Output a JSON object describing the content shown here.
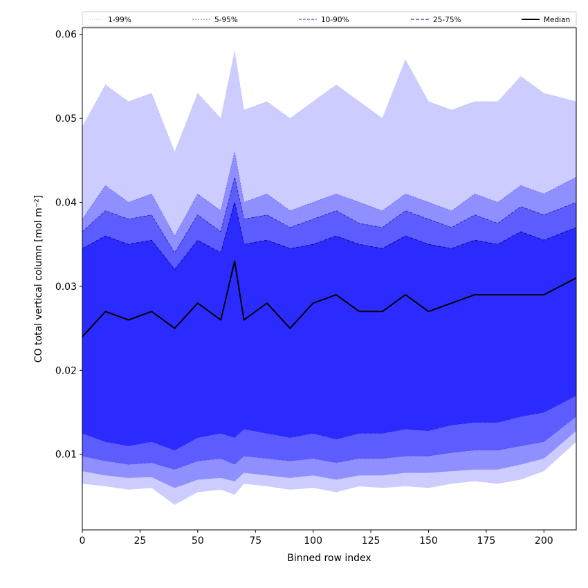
{
  "chart_data": {
    "type": "area",
    "xlabel": "Binned row index",
    "ylabel": "CO total vertical column [mol m⁻²]",
    "xlim": [
      0,
      214
    ],
    "ylim": [
      0.001,
      0.0608
    ],
    "x_ticks": [
      0,
      25,
      50,
      75,
      100,
      125,
      150,
      175,
      200
    ],
    "y_ticks": [
      0.01,
      0.02,
      0.03,
      0.04,
      0.05,
      0.06
    ],
    "x_tick_labels": [
      "0",
      "25",
      "50",
      "75",
      "100",
      "125",
      "150",
      "175",
      "200"
    ],
    "y_tick_labels": [
      "0.01",
      "0.02",
      "0.03",
      "0.04",
      "0.05",
      "0.06"
    ],
    "grid": false,
    "legend_placement": "top, full width",
    "x": [
      0,
      10,
      20,
      30,
      40,
      50,
      60,
      66,
      70,
      80,
      90,
      100,
      110,
      120,
      130,
      140,
      150,
      160,
      170,
      180,
      190,
      200,
      214
    ],
    "bands": [
      {
        "name": "1-99%",
        "color": "#ccccff",
        "lower": [
          0.0065,
          0.0062,
          0.0058,
          0.006,
          0.004,
          0.0055,
          0.0058,
          0.0052,
          0.0065,
          0.0062,
          0.0058,
          0.006,
          0.0055,
          0.0062,
          0.006,
          0.0062,
          0.006,
          0.0065,
          0.0068,
          0.0065,
          0.007,
          0.008,
          0.0115
        ],
        "upper": [
          0.049,
          0.054,
          0.052,
          0.053,
          0.046,
          0.053,
          0.05,
          0.058,
          0.051,
          0.052,
          0.05,
          0.052,
          0.054,
          0.052,
          0.05,
          0.057,
          0.052,
          0.051,
          0.052,
          0.052,
          0.055,
          0.053,
          0.052
        ]
      },
      {
        "name": "5-95%",
        "color": "#8f8fff",
        "lower": [
          0.008,
          0.0075,
          0.0072,
          0.0073,
          0.006,
          0.007,
          0.0072,
          0.0068,
          0.0078,
          0.0075,
          0.0072,
          0.0075,
          0.007,
          0.0075,
          0.0075,
          0.0078,
          0.0078,
          0.008,
          0.0082,
          0.0082,
          0.0088,
          0.0095,
          0.0128
        ],
        "upper": [
          0.038,
          0.042,
          0.04,
          0.041,
          0.036,
          0.041,
          0.039,
          0.046,
          0.04,
          0.041,
          0.039,
          0.04,
          0.041,
          0.04,
          0.039,
          0.041,
          0.04,
          0.039,
          0.041,
          0.04,
          0.042,
          0.041,
          0.043
        ]
      },
      {
        "name": "10-90%",
        "color": "#5c5cff",
        "lower": [
          0.0098,
          0.0092,
          0.0088,
          0.009,
          0.0082,
          0.0092,
          0.0095,
          0.0088,
          0.0098,
          0.0095,
          0.0092,
          0.0095,
          0.009,
          0.0095,
          0.0095,
          0.0098,
          0.0098,
          0.0102,
          0.0105,
          0.0105,
          0.011,
          0.0115,
          0.0145
        ],
        "upper": [
          0.0365,
          0.039,
          0.038,
          0.0385,
          0.034,
          0.0385,
          0.0365,
          0.043,
          0.038,
          0.0385,
          0.037,
          0.038,
          0.039,
          0.0375,
          0.037,
          0.039,
          0.038,
          0.037,
          0.0385,
          0.0375,
          0.0395,
          0.0385,
          0.04
        ]
      },
      {
        "name": "25-75%",
        "color": "#2b2bff",
        "lower": [
          0.0125,
          0.0115,
          0.011,
          0.0115,
          0.0105,
          0.012,
          0.0125,
          0.012,
          0.013,
          0.0125,
          0.012,
          0.0125,
          0.0118,
          0.0125,
          0.0125,
          0.013,
          0.0128,
          0.0135,
          0.0138,
          0.0138,
          0.0145,
          0.015,
          0.017
        ],
        "upper": [
          0.0345,
          0.036,
          0.035,
          0.0355,
          0.032,
          0.0355,
          0.034,
          0.04,
          0.035,
          0.0355,
          0.0345,
          0.035,
          0.036,
          0.035,
          0.0345,
          0.036,
          0.035,
          0.0345,
          0.0355,
          0.035,
          0.0365,
          0.0355,
          0.037
        ]
      }
    ],
    "median": {
      "name": "Median",
      "color": "#000000",
      "values": [
        0.024,
        0.027,
        0.026,
        0.027,
        0.025,
        0.028,
        0.026,
        0.033,
        0.026,
        0.028,
        0.025,
        0.028,
        0.029,
        0.027,
        0.027,
        0.029,
        0.027,
        0.028,
        0.029,
        0.029,
        0.029,
        0.029,
        0.031
      ]
    }
  }
}
